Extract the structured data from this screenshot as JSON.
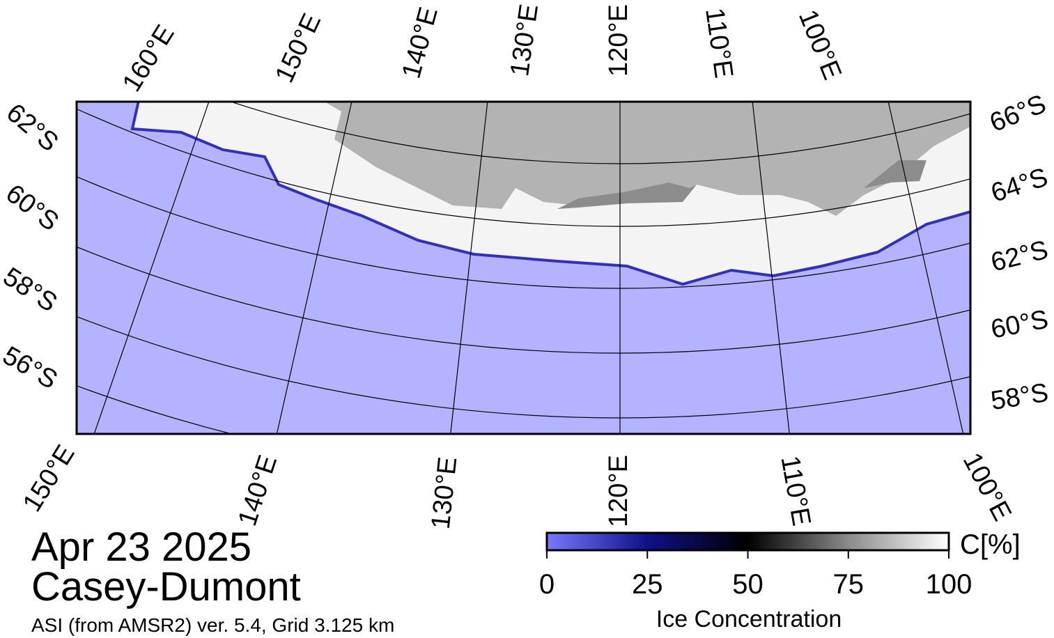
{
  "map": {
    "top_labels": [
      "160°E",
      "150°E",
      "140°E",
      "130°E",
      "120°E",
      "110°E",
      "100°E"
    ],
    "left_labels": [
      "62°S",
      "60°S",
      "58°S",
      "56°S"
    ],
    "right_labels": [
      "66°S",
      "64°S",
      "62°S",
      "60°S",
      "58°S"
    ],
    "bottom_labels": [
      "150°E",
      "140°E",
      "130°E",
      "120°E",
      "110°E",
      "100°E"
    ]
  },
  "header": {
    "date": "Apr 23 2025",
    "region": "Casey-Dumont",
    "source": "ASI (from AMSR2) ver. 5.4,  Grid 3.125 km"
  },
  "colorbar": {
    "lim": [
      0,
      100
    ],
    "ticks": [
      0,
      25,
      50,
      75,
      100
    ],
    "unit": "C[%]",
    "label": "Ice Concentration"
  }
}
